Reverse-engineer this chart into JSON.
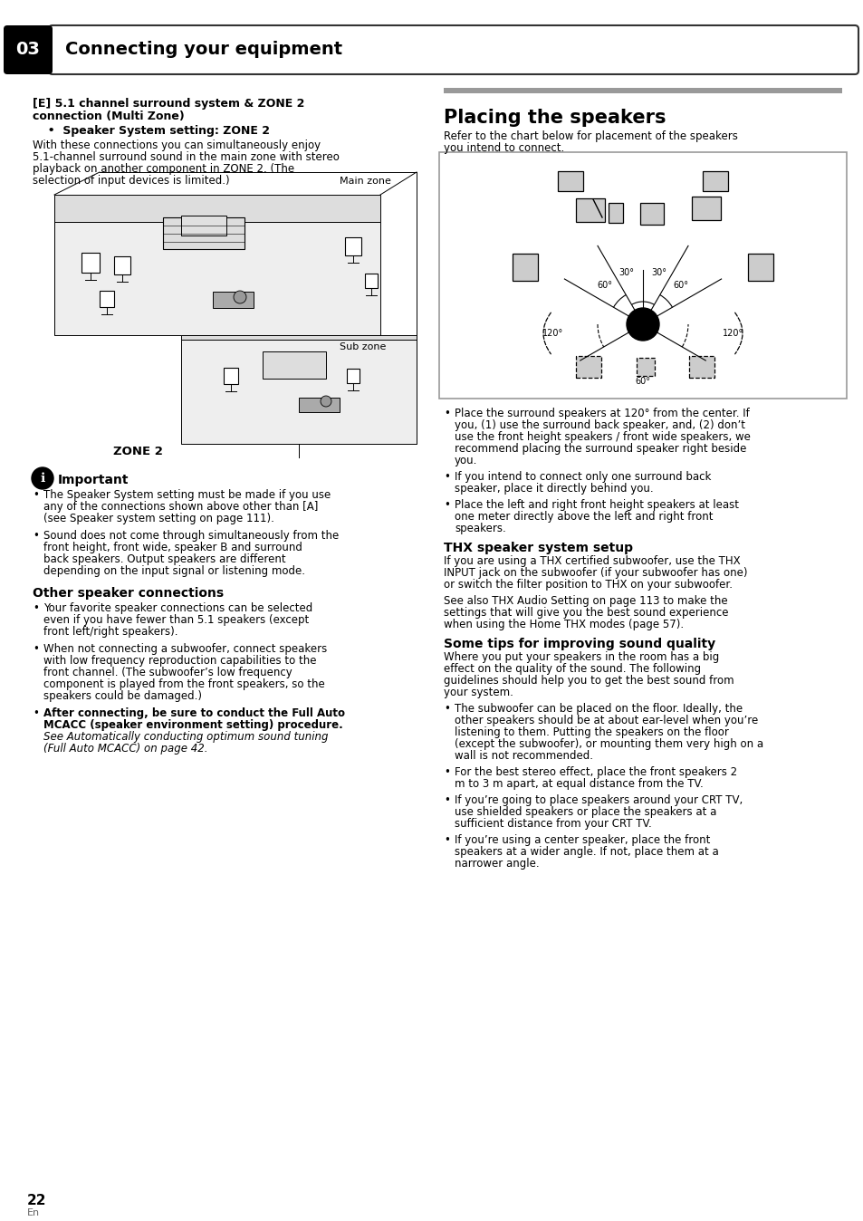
{
  "bg_color": "#ffffff",
  "header_text": "03",
  "header_label": "Connecting your equipment",
  "page_number": "22",
  "page_number_sub": "En",
  "section_e_title_line1": "[E] 5.1 channel surround system & ZONE 2",
  "section_e_title_line2": "connection (Multi Zone)",
  "section_e_subtitle": "  •  Speaker System setting: ZONE 2",
  "section_e_body": "With these connections you can simultaneously enjoy\n5.1-channel surround sound in the main zone with stereo\nplayback on another component in ZONE 2. (The\nselection of input devices is limited.)",
  "main_zone_label": "Main zone",
  "sub_zone_label": "Sub zone",
  "zone2_label": "ZONE 2",
  "important_title": "Important",
  "important_bullet1_pre": "The ",
  "important_bullet1_bold": "Speaker System",
  "important_bullet1_post": " setting must be made if you use any of the connections shown above other than [A] (see ",
  "important_bullet1_italic": "Speaker system setting",
  "important_bullet1_end": " on page 111).",
  "important_bullet2": "Sound does not come through simultaneously from the front height, front wide, speaker B and surround back speakers. Output speakers are different depending on the input signal or listening mode.",
  "other_connections_title": "Other speaker connections",
  "other_bullet1": "Your favorite speaker connections can be selected even if you have fewer than 5.1 speakers (except front left/right speakers).",
  "other_bullet2": "When not connecting a subwoofer, connect speakers with low frequency reproduction capabilities to the front channel. (The subwoofer’s low frequency component is played from the front speakers, so the speakers could be damaged.)",
  "other_bullet3_bold": "After connecting, be sure to conduct the Full Auto MCACC (speaker environment setting) procedure.",
  "other_bullet3_italic": "See Automatically conducting optimum sound tuning\n(Full Auto MCACC) on page 42.",
  "placing_title": "Placing the speakers",
  "placing_intro_line1": "Refer to the chart below for placement of the speakers",
  "placing_intro_line2": "you intend to connect.",
  "placing_bullet1": "Place the surround speakers at 120° from the center.\nIf you, (1) use the surround back speaker, and, (2)\ndon’t use the front height speakers / front wide\nspeakers, we recommend placing the surround\nspeaker right beside you.",
  "placing_bullet2": "If you intend to connect only one surround back\nspeaker, place it directly behind you.",
  "placing_bullet3": "Place the left and right front height speakers at least\none meter directly above the left and right front\nspeakers.",
  "thx_title": "THX speaker system setup",
  "thx_line1": "If you are using a THX certified subwoofer, use the ",
  "thx_bold1": "THX",
  "thx_line2": "INPUT",
  "thx_line2_rest": " jack on the subwoofer (if your subwoofer has one)\nor switch the filter position to ",
  "thx_bold2": "THX",
  "thx_line3": " on your subwoofer.",
  "thx_line4_pre": "See also ",
  "thx_italic": "THX Audio Setting",
  "thx_line4_post": " on page 113  to make the\nsettings that will give you the best sound experience\nwhen using the Home THX modes (page 57).",
  "tips_title": "Some tips for improving sound quality",
  "tips_intro_line1": "Where you put your speakers in the room has a big effect",
  "tips_intro_line2": "on the quality of the sound. The following guidelines",
  "tips_intro_line3": "should help you to get the best sound from your system.",
  "tips_bullet1": "The subwoofer can be placed on the floor. Ideally, the\nother speakers should be at about ear-level when\nyou’re listening to them. Putting the speakers on the\nfloor (except the subwoofer), or mounting them very\nhigh on a wall is not recommended.",
  "tips_bullet2": "For the best stereo effect, place the front speakers 2\nm to 3 m apart, at equal distance from the TV.",
  "tips_bullet3": "If you’re going to place speakers around your CRT TV,\nuse shielded speakers or place the speakers at a\nsufficient distance from your CRT TV.",
  "tips_bullet4": "If you’re using a center speaker, place the front\nspeakers at a wider angle. If not, place them at a\nnarrower angle."
}
